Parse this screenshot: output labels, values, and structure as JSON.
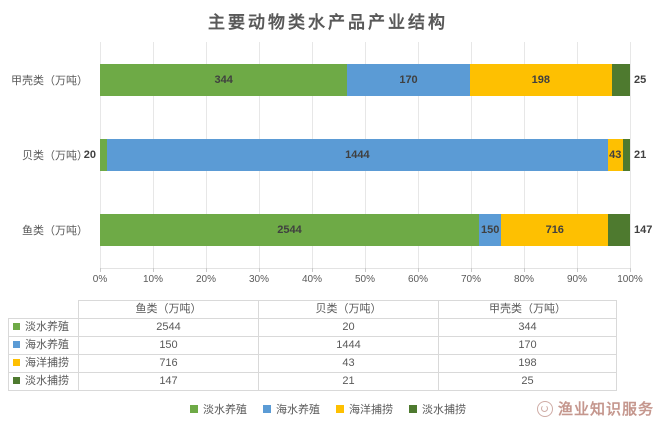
{
  "chart_data": {
    "type": "bar",
    "variant": "horizontal-stacked-100pct",
    "title": "主要动物类水产品产业结构",
    "categories": [
      "鱼类（万吨）",
      "贝类（万吨）",
      "甲壳类（万吨）"
    ],
    "row_order_top_to_bottom": [
      "甲壳类（万吨）",
      "贝类（万吨）",
      "鱼类（万吨）"
    ],
    "series": [
      {
        "name": "淡水养殖",
        "color": "#6EAA46",
        "values": [
          2544,
          20,
          344
        ]
      },
      {
        "name": "海水养殖",
        "color": "#5B9BD5",
        "values": [
          150,
          1444,
          170
        ]
      },
      {
        "name": "海洋捕捞",
        "color": "#FEC001",
        "values": [
          716,
          43,
          198
        ]
      },
      {
        "name": "淡水捕捞",
        "color": "#4E7A2F",
        "values": [
          147,
          21,
          25
        ]
      }
    ],
    "x_axis": {
      "min": 0,
      "max": 100,
      "tick_step": 10,
      "grid": true,
      "ticks": [
        "0%",
        "10%",
        "20%",
        "30%",
        "40%",
        "50%",
        "60%",
        "70%",
        "80%",
        "90%",
        "100%"
      ]
    },
    "value_label_positions": {
      "鱼类（万吨）": [
        "inside",
        "inside",
        "inside",
        "outside-right"
      ],
      "贝类（万吨）": [
        "outside-left",
        "inside",
        "inside",
        "outside-right"
      ],
      "甲壳类（万吨）": [
        "inside",
        "inside",
        "inside",
        "outside-right"
      ]
    },
    "legend": {
      "position": "bottom",
      "entries": [
        "淡水养殖",
        "海水养殖",
        "海洋捕捞",
        "淡水捕捞"
      ]
    },
    "data_table": {
      "corner_label": "",
      "column_headers": [
        "鱼类（万吨）",
        "贝类（万吨）",
        "甲壳类（万吨）"
      ],
      "rows": [
        {
          "name": "淡水养殖",
          "values": [
            2544,
            20,
            344
          ]
        },
        {
          "name": "海水养殖",
          "values": [
            150,
            1444,
            170
          ]
        },
        {
          "name": "海洋捕捞",
          "values": [
            716,
            43,
            198
          ]
        },
        {
          "name": "淡水捕捞",
          "values": [
            147,
            21,
            25
          ]
        }
      ]
    }
  },
  "watermark": {
    "text": "渔业知识服务"
  },
  "styles": {
    "title_color": "#595959",
    "axis_label_color": "#595959",
    "value_label_color": "#404040",
    "grid_color": "#e7e7e7",
    "table_border_color": "#d9d9d9",
    "watermark_color": "#9e5242"
  }
}
